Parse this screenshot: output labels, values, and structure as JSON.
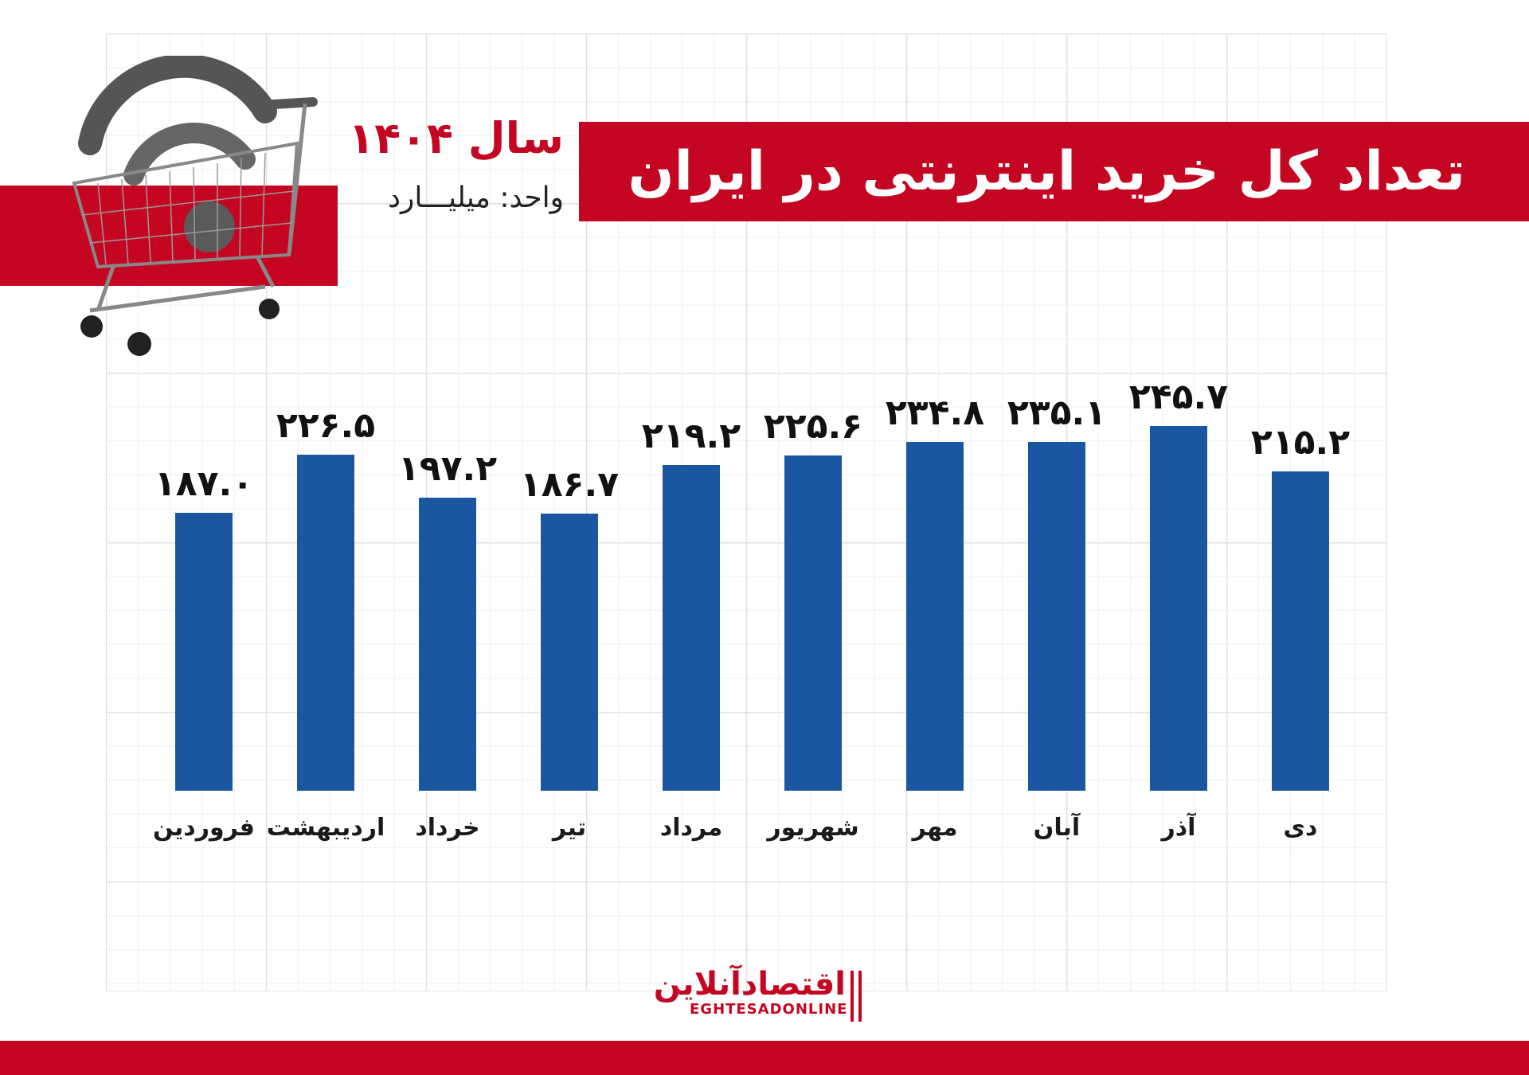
{
  "header": {
    "title": "تعداد کل خرید اینترنتی در ایران",
    "year_label": "سال ۱۴۰۴",
    "unit_label": "واحد: میلیـــارد"
  },
  "illustration": {
    "icon": "shopping-cart-with-wifi-icon"
  },
  "logo": {
    "name_fa": "اقتصادآنلاین",
    "name_en": "EGHTESADONLINE"
  },
  "colors": {
    "accent_red": "#c50622",
    "bar_blue": "#1b57a0",
    "text": "#111111"
  },
  "chart_data": {
    "type": "bar",
    "title": "تعداد کل خرید اینترنتی در ایران",
    "subtitle": "سال ۱۴۰۴ — واحد: میلیارد",
    "categories": [
      "فروردین",
      "اردیبهشت",
      "خرداد",
      "تیر",
      "مرداد",
      "شهریور",
      "مهر",
      "آبان",
      "آذر",
      "دی"
    ],
    "values": [
      187.0,
      226.5,
      197.2,
      186.7,
      219.2,
      225.6,
      234.8,
      235.1,
      245.7,
      215.2
    ],
    "value_labels": [
      "۱۸۷.۰",
      "۲۲۶.۵",
      "۱۹۷.۲",
      "۱۸۶.۷",
      "۲۱۹.۲",
      "۲۲۵.۶",
      "۲۳۴.۸",
      "۲۳۵.۱",
      "۲۴۵.۷",
      "۲۱۵.۲"
    ],
    "xlabel": "",
    "ylabel": "",
    "unit": "میلیارد",
    "ylim": [
      0,
      250
    ],
    "grid": true,
    "legend": "none"
  }
}
